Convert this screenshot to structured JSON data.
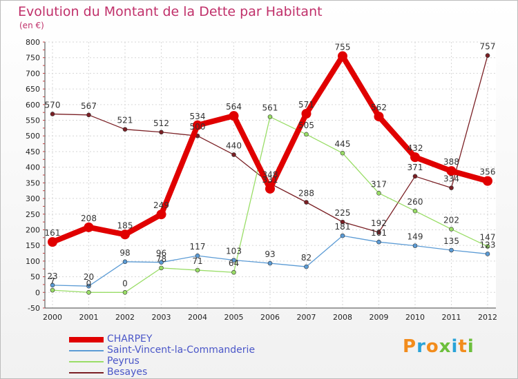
{
  "header": {
    "title": "Evolution du Montant de la Dette par Habitant",
    "unit": "(en €)"
  },
  "logo": {
    "text": "Proxiti",
    "colors": [
      "#f28c1c",
      "#2aa3d8",
      "#f28c1c",
      "#6cbf3c",
      "#2aa3d8",
      "#f28c1c",
      "#6cbf3c"
    ]
  },
  "chart_data": {
    "type": "line",
    "title": "Evolution du Montant de la Dette par Habitant",
    "ylabel": "(en €)",
    "xlabel": "",
    "x": [
      "2000",
      "2001",
      "2002",
      "2003",
      "2004",
      "2005",
      "2006",
      "2007",
      "2008",
      "2009",
      "2010",
      "2011",
      "2012"
    ],
    "ylim": [
      -50,
      800
    ],
    "yticks": [
      -50,
      0,
      50,
      100,
      150,
      200,
      250,
      300,
      350,
      400,
      450,
      500,
      550,
      600,
      650,
      700,
      750,
      800
    ],
    "grid": true,
    "legend_position": "bottom-left",
    "series": [
      {
        "name": "CHARPEY",
        "color": "#e00000",
        "width": 8,
        "values": [
          161,
          208,
          185,
          249,
          534,
          564,
          331,
          571,
          755,
          562,
          432,
          388,
          356
        ],
        "labels": [
          "161",
          "208",
          "185",
          "249",
          "534",
          "564",
          "331",
          "571",
          "755",
          "562",
          "432",
          "388",
          "356"
        ]
      },
      {
        "name": "Saint-Vincent-la-Commanderie",
        "color": "#5b9bd5",
        "width": 1.3,
        "values": [
          23,
          20,
          98,
          96,
          117,
          103,
          93,
          82,
          181,
          161,
          149,
          135,
          123
        ],
        "labels": [
          "23",
          "20",
          "98",
          "96",
          "117",
          "103",
          "93",
          "82",
          "181",
          "161",
          "149",
          "135",
          "123"
        ]
      },
      {
        "name": "Peyrus",
        "color": "#99dd66",
        "width": 1.3,
        "values": [
          7,
          0,
          0,
          78,
          71,
          64,
          561,
          505,
          445,
          317,
          260,
          202,
          147
        ],
        "labels": [
          "7",
          "0",
          "0",
          "78",
          "71",
          "64",
          "561",
          "505",
          "445",
          "317",
          "260",
          "202",
          "147"
        ]
      },
      {
        "name": "Besayes",
        "color": "#7a1f24",
        "width": 1.3,
        "values": [
          570,
          567,
          521,
          512,
          500,
          440,
          348,
          288,
          225,
          192,
          371,
          334,
          757
        ],
        "labels": [
          "570",
          "567",
          "521",
          "512",
          "500",
          "440",
          "348",
          "288",
          "225",
          "192",
          "371",
          "334",
          "757"
        ]
      }
    ]
  }
}
